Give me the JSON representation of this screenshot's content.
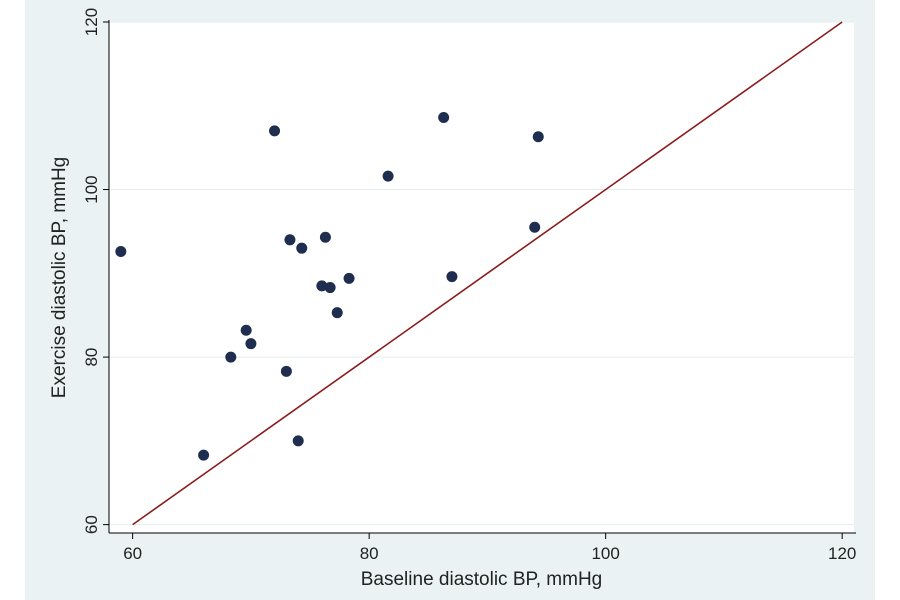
{
  "chart_data": {
    "type": "scatter",
    "title": "",
    "xlabel": "Baseline diastolic BP, mmHg",
    "ylabel": "Exercise diastolic BP, mmHg",
    "xlim": [
      58,
      121
    ],
    "ylim": [
      59,
      120
    ],
    "x_ticks": [
      60,
      80,
      100,
      120
    ],
    "y_ticks": [
      60,
      80,
      100,
      120
    ],
    "grid": "horizontal",
    "points": [
      {
        "x": 59.0,
        "y": 92.6
      },
      {
        "x": 66.0,
        "y": 68.3
      },
      {
        "x": 68.3,
        "y": 80.0
      },
      {
        "x": 69.6,
        "y": 83.2
      },
      {
        "x": 70.0,
        "y": 81.6
      },
      {
        "x": 72.0,
        "y": 107.0
      },
      {
        "x": 73.0,
        "y": 78.3
      },
      {
        "x": 73.3,
        "y": 94.0
      },
      {
        "x": 74.0,
        "y": 70.0
      },
      {
        "x": 74.3,
        "y": 93.0
      },
      {
        "x": 76.0,
        "y": 88.5
      },
      {
        "x": 76.3,
        "y": 94.3
      },
      {
        "x": 76.7,
        "y": 88.3
      },
      {
        "x": 77.3,
        "y": 85.3
      },
      {
        "x": 78.3,
        "y": 89.4
      },
      {
        "x": 81.6,
        "y": 101.6
      },
      {
        "x": 86.3,
        "y": 108.6
      },
      {
        "x": 87.0,
        "y": 89.6
      },
      {
        "x": 94.0,
        "y": 95.5
      },
      {
        "x": 94.3,
        "y": 106.3
      }
    ],
    "reference_line": {
      "from": [
        60,
        60
      ],
      "to": [
        120,
        120
      ],
      "color": "#8b1c1c"
    },
    "marker_color": "#1f2d4f",
    "plot_background": "#ffffff",
    "figure_background": "#eaf2f3",
    "grid_color": "#e6eeee"
  }
}
